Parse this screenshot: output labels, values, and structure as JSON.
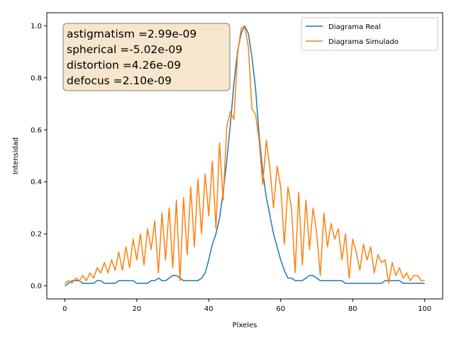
{
  "chart_data": {
    "type": "line",
    "xlabel": "Píxeles",
    "ylabel": "Intensidad",
    "xlim": [
      -5,
      105
    ],
    "ylim": [
      -0.05,
      1.05
    ],
    "xticks": [
      0,
      20,
      40,
      60,
      80,
      100
    ],
    "yticks": [
      0.0,
      0.2,
      0.4,
      0.6,
      0.8,
      1.0
    ],
    "xtick_labels": [
      "0",
      "20",
      "40",
      "60",
      "80",
      "100"
    ],
    "ytick_labels": [
      "0.0",
      "0.2",
      "0.4",
      "0.6",
      "0.8",
      "1.0"
    ],
    "legend_position": "top-right",
    "annotation": {
      "lines": [
        "astigmatism =2.99e-09",
        "spherical =-5.02e-09",
        "distortion =4.26e-09",
        "defocus =2.10e-09"
      ],
      "box_color": "#f5e6cc",
      "position": "top-left"
    },
    "series": [
      {
        "name": "Diagrama Real",
        "color": "#1f77b4",
        "x": [
          0,
          1,
          2,
          3,
          4,
          5,
          6,
          7,
          8,
          9,
          10,
          11,
          12,
          13,
          14,
          15,
          16,
          17,
          18,
          19,
          20,
          21,
          22,
          23,
          24,
          25,
          26,
          27,
          28,
          29,
          30,
          31,
          32,
          33,
          34,
          35,
          36,
          37,
          38,
          39,
          40,
          41,
          42,
          43,
          44,
          45,
          46,
          47,
          48,
          49,
          50,
          51,
          52,
          53,
          54,
          55,
          56,
          57,
          58,
          59,
          60,
          61,
          62,
          63,
          64,
          65,
          66,
          67,
          68,
          69,
          70,
          71,
          72,
          73,
          74,
          75,
          76,
          77,
          78,
          79,
          80,
          81,
          82,
          83,
          84,
          85,
          86,
          87,
          88,
          89,
          90,
          91,
          92,
          93,
          94,
          95,
          96,
          97,
          98,
          99,
          100
        ],
        "y": [
          0.0,
          0.01,
          0.02,
          0.02,
          0.02,
          0.01,
          0.01,
          0.01,
          0.01,
          0.02,
          0.02,
          0.01,
          0.01,
          0.01,
          0.01,
          0.02,
          0.02,
          0.02,
          0.02,
          0.02,
          0.01,
          0.01,
          0.01,
          0.01,
          0.02,
          0.02,
          0.03,
          0.02,
          0.02,
          0.03,
          0.04,
          0.04,
          0.03,
          0.02,
          0.02,
          0.02,
          0.02,
          0.02,
          0.03,
          0.05,
          0.1,
          0.16,
          0.2,
          0.26,
          0.36,
          0.48,
          0.62,
          0.78,
          0.9,
          0.97,
          1.0,
          0.97,
          0.88,
          0.76,
          0.58,
          0.44,
          0.34,
          0.27,
          0.2,
          0.15,
          0.1,
          0.06,
          0.03,
          0.03,
          0.02,
          0.02,
          0.02,
          0.03,
          0.04,
          0.04,
          0.03,
          0.02,
          0.02,
          0.02,
          0.02,
          0.02,
          0.02,
          0.02,
          0.01,
          0.01,
          0.01,
          0.01,
          0.01,
          0.01,
          0.01,
          0.01,
          0.01,
          0.01,
          0.01,
          0.02,
          0.02,
          0.02,
          0.02,
          0.02,
          0.01,
          0.01,
          0.01,
          0.01,
          0.01,
          0.01,
          0.01
        ]
      },
      {
        "name": "Diagrama Simulado",
        "color": "#ff7f0e",
        "x": [
          0,
          1,
          2,
          3,
          4,
          5,
          6,
          7,
          8,
          9,
          10,
          11,
          12,
          13,
          14,
          15,
          16,
          17,
          18,
          19,
          20,
          21,
          22,
          23,
          24,
          25,
          26,
          27,
          28,
          29,
          30,
          31,
          32,
          33,
          34,
          35,
          36,
          37,
          38,
          39,
          40,
          41,
          42,
          43,
          44,
          45,
          46,
          47,
          48,
          49,
          50,
          51,
          52,
          53,
          54,
          55,
          56,
          57,
          58,
          59,
          60,
          61,
          62,
          63,
          64,
          65,
          66,
          67,
          68,
          69,
          70,
          71,
          72,
          73,
          74,
          75,
          76,
          77,
          78,
          79,
          80,
          81,
          82,
          83,
          84,
          85,
          86,
          87,
          88,
          89,
          90,
          91,
          92,
          93,
          94,
          95,
          96,
          97,
          98,
          99,
          100
        ],
        "y": [
          0.01,
          0.02,
          0.01,
          0.03,
          0.02,
          0.04,
          0.02,
          0.05,
          0.03,
          0.07,
          0.05,
          0.09,
          0.05,
          0.1,
          0.06,
          0.13,
          0.06,
          0.15,
          0.07,
          0.18,
          0.1,
          0.2,
          0.08,
          0.22,
          0.14,
          0.25,
          0.05,
          0.28,
          0.1,
          0.3,
          0.07,
          0.33,
          0.02,
          0.34,
          0.12,
          0.38,
          0.15,
          0.41,
          0.2,
          0.43,
          0.27,
          0.48,
          0.22,
          0.55,
          0.33,
          0.61,
          0.67,
          0.64,
          0.89,
          0.99,
          1.0,
          0.92,
          0.68,
          0.66,
          0.56,
          0.39,
          0.56,
          0.45,
          0.3,
          0.46,
          0.38,
          0.16,
          0.38,
          0.3,
          0.05,
          0.36,
          0.08,
          0.33,
          0.14,
          0.3,
          0.2,
          0.04,
          0.28,
          0.15,
          0.24,
          0.18,
          0.22,
          0.1,
          0.2,
          0.03,
          0.18,
          0.13,
          0.06,
          0.16,
          0.1,
          0.15,
          0.05,
          0.12,
          0.09,
          0.1,
          0.01,
          0.09,
          0.04,
          0.07,
          0.03,
          0.05,
          0.02,
          0.04,
          0.04,
          0.02,
          0.02
        ]
      }
    ]
  }
}
